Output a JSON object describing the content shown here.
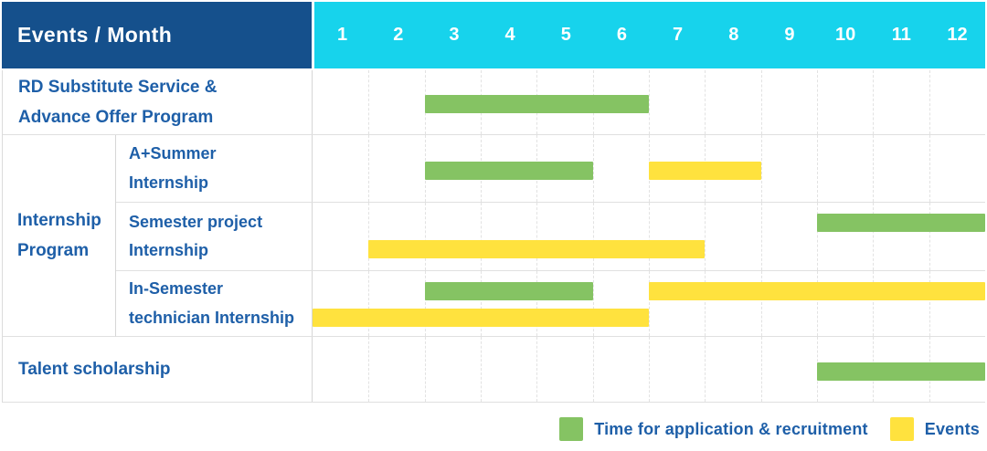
{
  "header": {
    "title": "Events / Month",
    "months": [
      "1",
      "2",
      "3",
      "4",
      "5",
      "6",
      "7",
      "8",
      "9",
      "10",
      "11",
      "12"
    ]
  },
  "group": {
    "label": "Internship\nProgram"
  },
  "legend": [
    {
      "label": "Time for application & recruitment",
      "color": "#85c363",
      "series": "application"
    },
    {
      "label": "Events",
      "color": "#ffe23e",
      "series": "events"
    }
  ],
  "colors": {
    "application": "#85c363",
    "events": "#ffe23e",
    "header_bg": "#15508c",
    "month_header_bg": "#17d3ec",
    "header_text": "#ffffff",
    "label_text": "#1e5fa8"
  },
  "chart_data": {
    "type": "bar",
    "subtype": "gantt",
    "title": "Events / Month",
    "x_axis": {
      "label": "Month",
      "ticks": [
        1,
        2,
        3,
        4,
        5,
        6,
        7,
        8,
        9,
        10,
        11,
        12
      ],
      "range": [
        1,
        12
      ]
    },
    "legend_entries": {
      "application": "Time for application & recruitment",
      "events": "Events"
    },
    "rows": [
      {
        "group": null,
        "label": "RD Substitute Service &\nAdvance Offer Program",
        "bars": [
          {
            "series": "application",
            "start_month": 3,
            "end_month": 6,
            "lane": "middle"
          }
        ]
      },
      {
        "group": "Internship Program",
        "label": "A+Summer\nInternship",
        "bars": [
          {
            "series": "application",
            "start_month": 3,
            "end_month": 5,
            "lane": "middle"
          },
          {
            "series": "events",
            "start_month": 7,
            "end_month": 8,
            "lane": "middle"
          }
        ]
      },
      {
        "group": "Internship Program",
        "label": "Semester project\nInternship",
        "bars": [
          {
            "series": "application",
            "start_month": 10,
            "end_month": 12,
            "lane": "top"
          },
          {
            "series": "events",
            "start_month": 2,
            "end_month": 7,
            "lane": "bottom"
          }
        ]
      },
      {
        "group": "Internship Program",
        "label": "In-Semester\ntechnician Internship",
        "bars": [
          {
            "series": "application",
            "start_month": 3,
            "end_month": 5,
            "lane": "top"
          },
          {
            "series": "events",
            "start_month": 7,
            "end_month": 12,
            "lane": "top"
          },
          {
            "series": "events",
            "start_month": 1,
            "end_month": 6,
            "lane": "bottom"
          }
        ]
      },
      {
        "group": null,
        "label": "Talent scholarship",
        "bars": [
          {
            "series": "application",
            "start_month": 10,
            "end_month": 12,
            "lane": "middle"
          }
        ]
      }
    ]
  }
}
